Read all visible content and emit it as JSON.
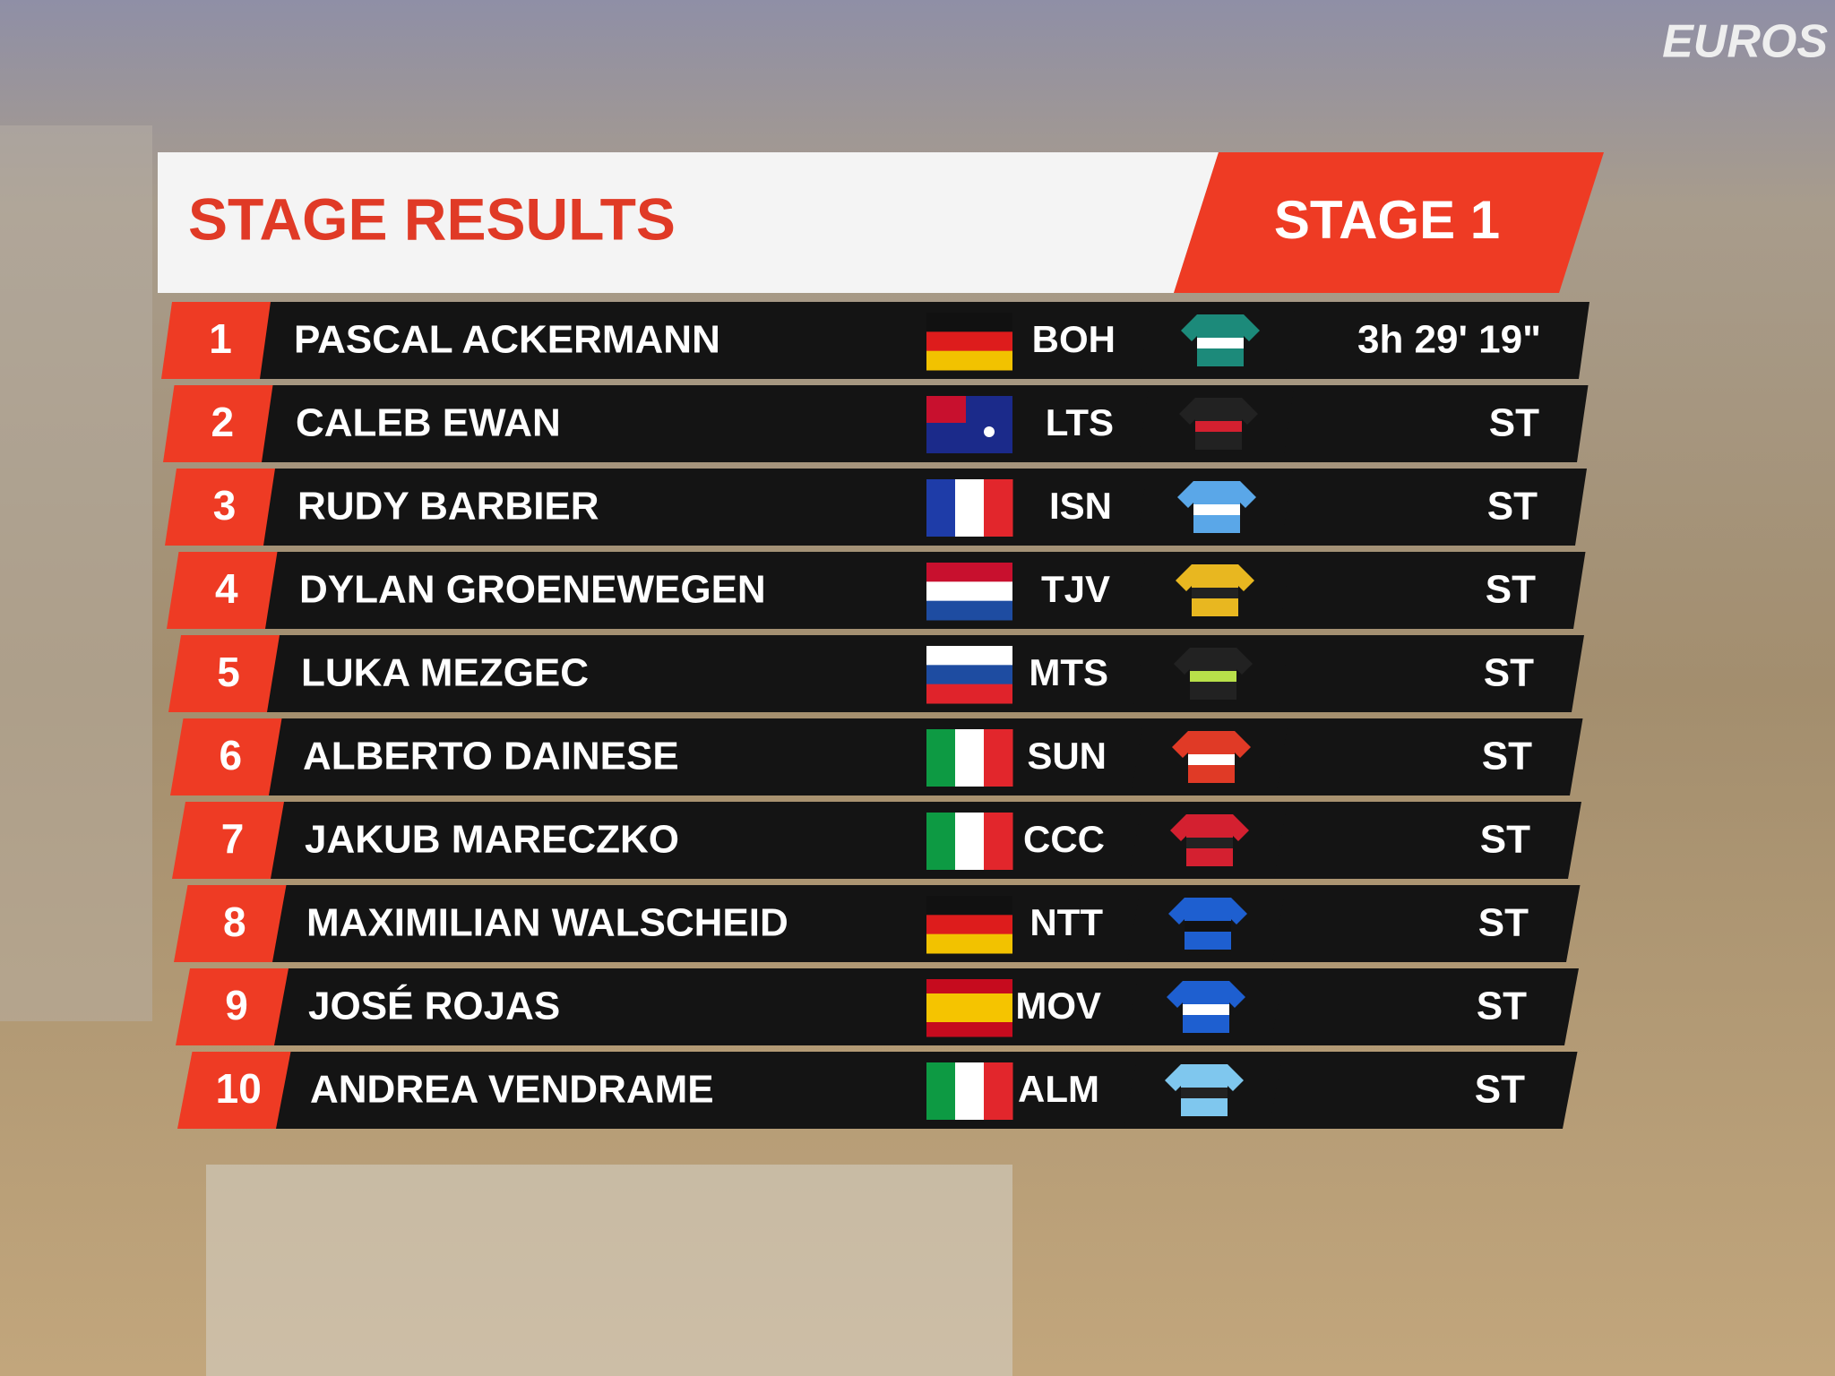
{
  "logo": "EUROS",
  "header": {
    "title": "STAGE RESULTS",
    "stage": "STAGE 1"
  },
  "table": {
    "rows": [
      {
        "rank": 1,
        "rider": "PASCAL ACKERMANN",
        "team": "BOH",
        "time": "3h 29' 19\""
      },
      {
        "rank": 2,
        "rider": "CALEB EWAN",
        "team": "LTS",
        "time": "ST"
      },
      {
        "rank": 3,
        "rider": "RUDY BARBIER",
        "team": "ISN",
        "time": "ST"
      },
      {
        "rank": 4,
        "rider": "DYLAN GROENEWEGEN",
        "team": "TJV",
        "time": "ST"
      },
      {
        "rank": 5,
        "rider": "LUKA MEZGEC",
        "team": "MTS",
        "time": "ST"
      },
      {
        "rank": 6,
        "rider": "ALBERTO DAINESE",
        "team": "SUN",
        "time": "ST"
      },
      {
        "rank": 7,
        "rider": "JAKUB MARECZKO",
        "team": "CCC",
        "time": "ST"
      },
      {
        "rank": 8,
        "rider": "MAXIMILIAN WALSCHEID",
        "team": "NTT",
        "time": "ST"
      },
      {
        "rank": 9,
        "rider": "JOSÉ ROJAS",
        "team": "MOV",
        "time": "ST"
      },
      {
        "rank": 10,
        "rider": "ANDREA VENDRAME",
        "team": "ALM",
        "time": "ST"
      }
    ]
  }
}
